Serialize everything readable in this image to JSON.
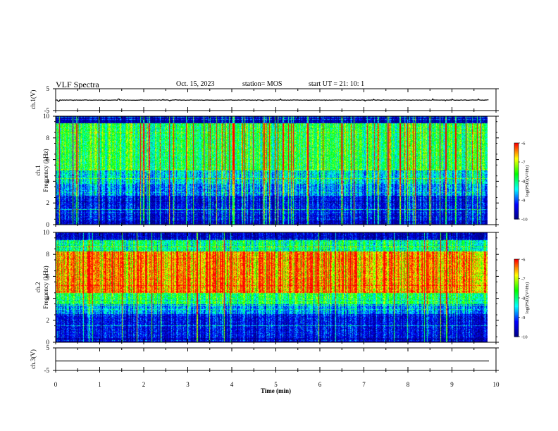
{
  "header": {
    "title": "VLF Spectra",
    "date": "Oct. 15, 2023",
    "station": "station= MOS",
    "start": "start  UT =   21: 10: 1"
  },
  "chart_data": [
    {
      "type": "line",
      "name": "ch1-waveform",
      "ylabel": "ch.1(V)",
      "ylim": [
        -5,
        5
      ],
      "yticks": [
        -5,
        5
      ],
      "xlim": [
        0,
        10
      ]
    },
    {
      "type": "heatmap",
      "name": "ch1-spectrogram",
      "ylabel_line1": "ch.1",
      "ylabel_line2": "Frequency (kHz)",
      "ylim": [
        0,
        10
      ],
      "yticks": [
        0,
        2,
        4,
        6,
        8,
        10
      ],
      "xlim": [
        0,
        10
      ],
      "data_end_min": 9.8,
      "colorbar": {
        "label": "log(PSD)(V²/Hz)",
        "range": [
          -10,
          -6
        ],
        "ticks": [
          -6,
          -7,
          -8,
          -9,
          -10
        ]
      }
    },
    {
      "type": "heatmap",
      "name": "ch2-spectrogram",
      "ylabel_line1": "ch.2",
      "ylabel_line2": "Frequency (kHz)",
      "ylim": [
        0,
        10
      ],
      "yticks": [
        0,
        2,
        4,
        6,
        8,
        10
      ],
      "xlim": [
        0,
        10
      ],
      "data_end_min": 9.8,
      "colorbar": {
        "label": "log(PSD)(V²/Hz)",
        "range": [
          -10,
          -6
        ],
        "ticks": [
          -6,
          -7,
          -8,
          -9,
          -10
        ]
      }
    },
    {
      "type": "line",
      "name": "ch3-waveform",
      "ylabel": "ch.3(V)",
      "ylim": [
        -5,
        5
      ],
      "yticks": [
        -5,
        5
      ],
      "xlim": [
        0,
        10
      ],
      "xlabel": "Time  (min)",
      "xticks": [
        0,
        1,
        2,
        3,
        4,
        5,
        6,
        7,
        8,
        9,
        10
      ]
    }
  ],
  "colors": {
    "jet": [
      "#000080",
      "#0000ff",
      "#00ffff",
      "#00ff00",
      "#ffff00",
      "#ff0000"
    ]
  }
}
